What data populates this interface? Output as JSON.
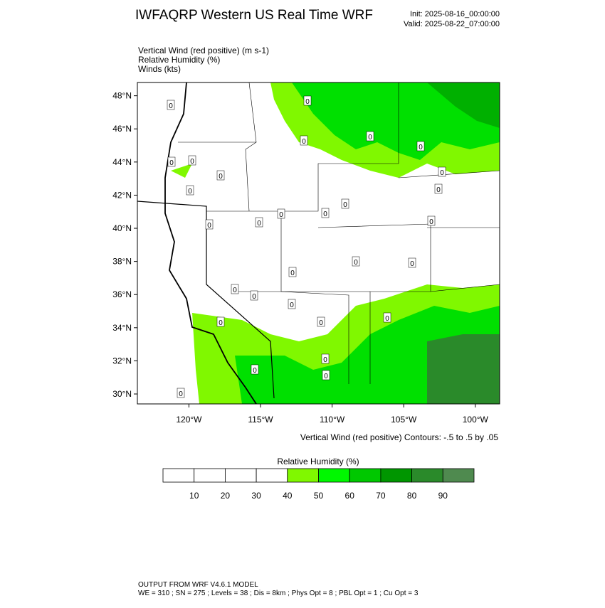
{
  "header": {
    "title": "IWFAQRP Western US Real Time WRF",
    "init": "Init: 2025-08-16_00:00:00",
    "valid": "Valid: 2025-08-22_07:00:00"
  },
  "fields": [
    "Vertical Wind (red positive)   (m s-1)",
    "Relative Humidity   (%)",
    "Winds   (kts)"
  ],
  "map": {
    "latlim": [
      29.4,
      48.8
    ],
    "lonlim": [
      -123.6,
      -98.3
    ],
    "lat_ticks": [
      {
        "value": 30,
        "label": "30°N"
      },
      {
        "value": 32,
        "label": "32°N"
      },
      {
        "value": 34,
        "label": "34°N"
      },
      {
        "value": 36,
        "label": "36°N"
      },
      {
        "value": 38,
        "label": "38°N"
      },
      {
        "value": 40,
        "label": "40°N"
      },
      {
        "value": 42,
        "label": "42°N"
      },
      {
        "value": 44,
        "label": "44°N"
      },
      {
        "value": 46,
        "label": "46°N"
      },
      {
        "value": 48,
        "label": "48°N"
      }
    ],
    "lon_ticks": [
      {
        "value": -120,
        "label": "120°W"
      },
      {
        "value": -115,
        "label": "115°W"
      },
      {
        "value": -110,
        "label": "110°W"
      },
      {
        "value": -105,
        "label": "105°W"
      },
      {
        "value": -100,
        "label": "100°W"
      }
    ],
    "contour_labels": [
      "0",
      "0",
      "0",
      "0",
      "0",
      "0",
      "0",
      "0",
      "0",
      "0",
      "0",
      "0",
      "0",
      "0",
      "0",
      "0",
      "0",
      "0",
      "0",
      "0",
      "0",
      "0",
      "0",
      "0",
      "0",
      "0",
      "0",
      "0",
      "0",
      "0"
    ]
  },
  "contour_note": "Vertical Wind (red positive) Contours: -.5 to .5 by .05",
  "colorbar": {
    "title": "Relative Humidity  (%)",
    "labels": [
      10,
      20,
      30,
      40,
      50,
      60,
      70,
      80,
      90
    ],
    "colors": [
      "#ffffff",
      "#ffffff",
      "#ffffff",
      "#ffffff",
      "#80f800",
      "#00f800",
      "#00c800",
      "#009600",
      "#2a8a2a",
      "#4f8a4f"
    ]
  },
  "footer": [
    "OUTPUT FROM WRF V4.6.1 MODEL",
    "WE = 310 ; SN = 275 ; Levels = 38 ; Dis = 8km ; Phys Opt = 8 ; PBL Opt = 1 ; Cu Opt = 3"
  ]
}
